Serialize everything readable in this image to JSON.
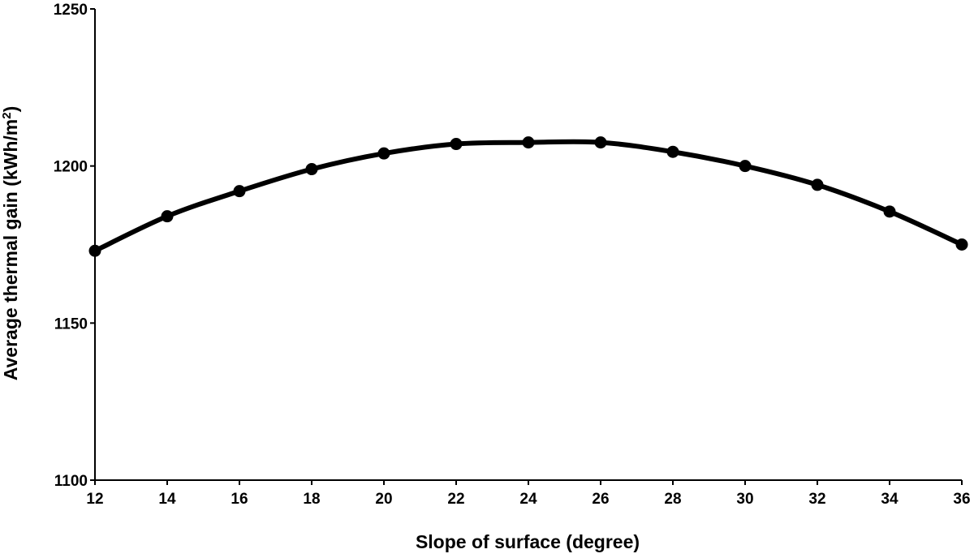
{
  "chart_data": {
    "type": "line",
    "title": "",
    "xlabel": "Slope of surface (degree)",
    "ylabel": "Average thermal gain  (kWh/m",
    "ylabel_superscript": "2",
    "ylabel_close": ")",
    "xlim": [
      12,
      36
    ],
    "ylim": [
      1100,
      1250
    ],
    "x_ticks": [
      12,
      14,
      16,
      18,
      20,
      22,
      24,
      26,
      28,
      30,
      32,
      34,
      36
    ],
    "y_ticks": [
      1100,
      1150,
      1200,
      1250
    ],
    "grid": false,
    "legend": "none",
    "series": [
      {
        "x": [
          12,
          14,
          16,
          18,
          20,
          22,
          24,
          26,
          28,
          30,
          32,
          34,
          36
        ],
        "y": [
          1173,
          1184,
          1192,
          1199,
          1204,
          1207,
          1207.5,
          1207.5,
          1204.5,
          1200,
          1194,
          1185.5,
          1175
        ],
        "color": "#000000",
        "marker": "circle",
        "smooth": true
      }
    ]
  }
}
